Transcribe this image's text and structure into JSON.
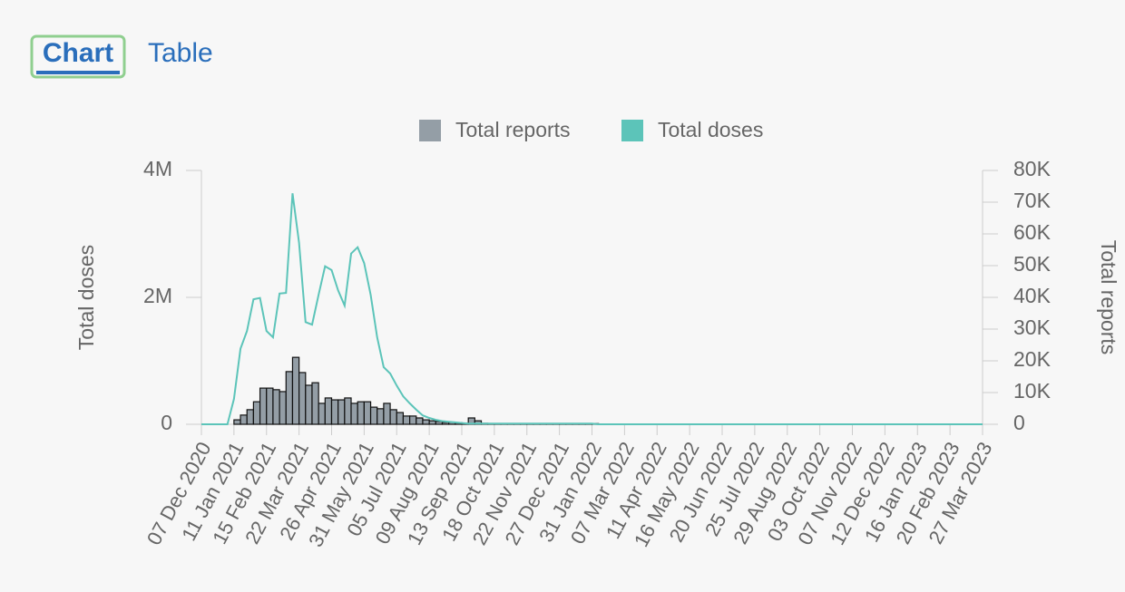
{
  "tabs": [
    "Chart",
    "Table"
  ],
  "chart_data": {
    "type": "bar",
    "legend": "top",
    "y_label": "Total doses",
    "y2_label": "Total reports",
    "categories": [
      "07 Dec 2020",
      null,
      null,
      null,
      null,
      "11 Jan 2021",
      null,
      null,
      null,
      null,
      "15 Feb 2021",
      null,
      null,
      null,
      null,
      "22 Mar 2021",
      null,
      null,
      null,
      null,
      "26 Apr 2021",
      null,
      null,
      null,
      null,
      "31 May 2021",
      null,
      null,
      null,
      null,
      "05 Jul 2021",
      null,
      null,
      null,
      null,
      "09 Aug 2021",
      null,
      null,
      null,
      null,
      "13 Sep 2021",
      null,
      null,
      null,
      null,
      "18 Oct 2021",
      null,
      null,
      null,
      null,
      "22 Nov 2021",
      null,
      null,
      null,
      null,
      "27 Dec 2021",
      null,
      null,
      null,
      null,
      "31 Jan 2022",
      null,
      null,
      null,
      null,
      "07 Mar 2022",
      null,
      null,
      null,
      null,
      "11 Apr 2022",
      null,
      null,
      null,
      null,
      "16 May 2022",
      null,
      null,
      null,
      null,
      "20 Jun 2022",
      null,
      null,
      null,
      null,
      "25 Jul 2022",
      null,
      null,
      null,
      null,
      "29 Aug 2022",
      null,
      null,
      null,
      null,
      "03 Oct 2022",
      null,
      null,
      null,
      null,
      "07 Nov 2022",
      null,
      null,
      null,
      null,
      "12 Dec 2022",
      null,
      null,
      null,
      null,
      "16 Jan 2023",
      null,
      null,
      null,
      null,
      "20 Feb 2023",
      null,
      null,
      null,
      null,
      "27 Mar 2023"
    ],
    "series": [
      {
        "name": "Total reports",
        "type": "bar",
        "axis": "y2",
        "color": "#949ea6",
        "values": [
          0,
          0,
          0,
          0,
          0,
          1400,
          2900,
          4600,
          7100,
          11400,
          11400,
          10900,
          10300,
          16600,
          21100,
          16300,
          12300,
          13100,
          6600,
          8300,
          7700,
          7700,
          8300,
          6600,
          7100,
          7100,
          5400,
          4900,
          6600,
          4600,
          3700,
          2600,
          2600,
          2000,
          1400,
          1100,
          900,
          600,
          600,
          500,
          300,
          2000,
          1100,
          300,
          200,
          200,
          200,
          200,
          200,
          200,
          200,
          200,
          200,
          200,
          200,
          200,
          200,
          200,
          200,
          200,
          200,
          0,
          0,
          0,
          0,
          0,
          0,
          0,
          0,
          0,
          0,
          0,
          0,
          0,
          0,
          0,
          0,
          0,
          0,
          0,
          0,
          0,
          0,
          0,
          0,
          0,
          0,
          0,
          0,
          0,
          0,
          0,
          0,
          0,
          0,
          0,
          0,
          0,
          0,
          0,
          0,
          0,
          0,
          0,
          0,
          0,
          0,
          0,
          0,
          0,
          0,
          0,
          0,
          0,
          0,
          0,
          0,
          0,
          0,
          0,
          0
        ]
      },
      {
        "name": "Total doses",
        "type": "line",
        "color": "#5cc4b9",
        "values": [
          0,
          0,
          0,
          0,
          0,
          400000,
          1190000,
          1470000,
          1970000,
          1990000,
          1470000,
          1370000,
          2060000,
          2070000,
          3640000,
          2860000,
          1610000,
          1570000,
          2040000,
          2490000,
          2430000,
          2110000,
          1870000,
          2690000,
          2790000,
          2540000,
          2040000,
          1370000,
          900000,
          800000,
          610000,
          440000,
          330000,
          230000,
          140000,
          100000,
          70000,
          50000,
          40000,
          30000,
          20000,
          10000,
          10000,
          10000,
          10000,
          10000,
          10000,
          10000,
          10000,
          10000,
          10000,
          10000,
          10000,
          10000,
          10000,
          10000,
          10000,
          10000,
          10000,
          10000,
          10000,
          0,
          0,
          0,
          0,
          0,
          0,
          0,
          0,
          0,
          0,
          0,
          0,
          0,
          0,
          0,
          0,
          0,
          0,
          0,
          0,
          0,
          0,
          0,
          0,
          0,
          0,
          0,
          0,
          0,
          0,
          0,
          0,
          0,
          0,
          0,
          0,
          0,
          0,
          0,
          0,
          0,
          0,
          0,
          0,
          0,
          0,
          0,
          0,
          0,
          0,
          0,
          0,
          0,
          0,
          0,
          0,
          0,
          0,
          0,
          0
        ]
      }
    ],
    "ylim": [
      0,
      4000000
    ],
    "yticks": [
      0,
      {
        "value": 2000000,
        "label": "2M"
      },
      {
        "value": 4000000,
        "label": "4M"
      }
    ],
    "y2lim": [
      0,
      80000
    ],
    "y2ticks": [
      0,
      {
        "value": 10000,
        "label": "10K"
      },
      {
        "value": 20000,
        "label": "20K"
      },
      {
        "value": 30000,
        "label": "30K"
      },
      {
        "value": 40000,
        "label": "40K"
      },
      {
        "value": 50000,
        "label": "50K"
      },
      {
        "value": 60000,
        "label": "60K"
      },
      {
        "value": 70000,
        "label": "70K"
      },
      {
        "value": 80000,
        "label": "80K"
      }
    ]
  }
}
